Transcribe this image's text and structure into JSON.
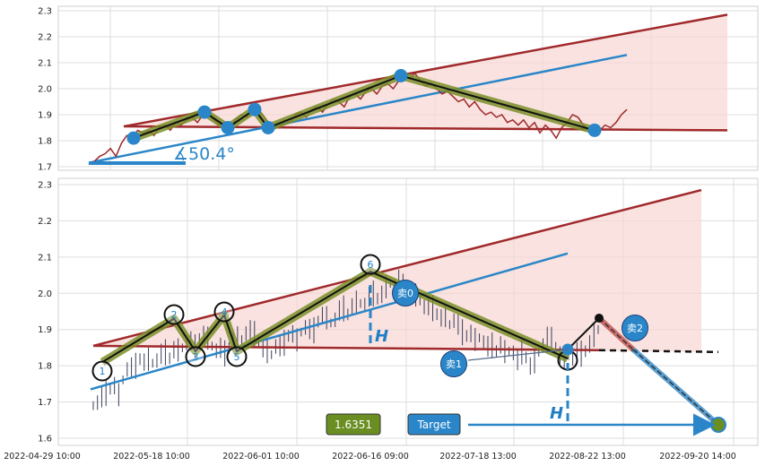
{
  "chart_data": [
    {
      "type": "line",
      "title": "",
      "ylim": [
        1.7,
        2.3
      ],
      "yticks": [
        "1.7",
        "1.8",
        "1.9",
        "2.0",
        "2.1",
        "2.2",
        "2.3"
      ],
      "grid": true,
      "series": [
        {
          "values": [
            1.71,
            1.72,
            1.74,
            1.75,
            1.77,
            1.74,
            1.79,
            1.82,
            1.81,
            1.84,
            1.83,
            1.84,
            1.82,
            1.85,
            1.86,
            1.84,
            1.87,
            1.86,
            1.88,
            1.89,
            1.87,
            1.9,
            1.91,
            1.88,
            1.86,
            1.87,
            1.85,
            1.88,
            1.9,
            1.89,
            1.91,
            1.92,
            1.9,
            1.87,
            1.86,
            1.85,
            1.88,
            1.87,
            1.9,
            1.91,
            1.89,
            1.92,
            1.93,
            1.91,
            1.94,
            1.96,
            1.95,
            1.93,
            1.97,
            1.98,
            1.96,
            1.99,
            2.0,
            1.98,
            2.01,
            2.02,
            2.0,
            2.03,
            2.05,
            2.04,
            2.06,
            2.03,
            2.01,
            2.02,
            2.0,
            1.98,
            1.99,
            1.97,
            1.95,
            1.96,
            1.93,
            1.95,
            1.92,
            1.9,
            1.91,
            1.89,
            1.9,
            1.87,
            1.88,
            1.86,
            1.88,
            1.85,
            1.87,
            1.83,
            1.86,
            1.84,
            1.81,
            1.85,
            1.87,
            1.9,
            1.89,
            1.86,
            1.84,
            1.85,
            1.84,
            1.86,
            1.85,
            1.87,
            1.9,
            1.92
          ]
        }
      ],
      "wave_points": [
        1.81,
        1.91,
        1.85,
        1.92,
        1.85,
        2.05,
        1.84
      ],
      "annotations": {
        "angle_label": "∡50.4°"
      }
    },
    {
      "type": "line",
      "title": "",
      "ylim": [
        1.6,
        2.3
      ],
      "yticks": [
        "1.6",
        "1.7",
        "1.8",
        "1.9",
        "2.0",
        "2.1",
        "2.2",
        "2.3"
      ],
      "xticks": [
        "2022-04-29 10:00",
        "2022-05-18 10:00",
        "2022-06-01 10:00",
        "2022-06-16 09:00",
        "2022-07-18 13:00",
        "2022-08-22 13:00",
        "2022-09-20 14:00"
      ],
      "grid": true,
      "wave_points": [
        1.81,
        1.93,
        1.84,
        1.94,
        1.84,
        2.06,
        1.82
      ],
      "wave_labels": [
        "1",
        "2",
        "3",
        "4",
        "5",
        "6"
      ],
      "signals": [
        {
          "label": "卖0",
          "value": 2.0
        },
        {
          "label": "卖1",
          "value": 1.8
        },
        {
          "label": "卖2",
          "value": 1.9
        }
      ],
      "annotations": {
        "height_marker": "H",
        "price_label": "1.6351",
        "target_label": "Target",
        "target_value": 1.6351
      }
    }
  ],
  "colors": {
    "price_line": "#9e2a2b",
    "trend_red": "#a0292b",
    "trend_blue": "#2a86c8",
    "wave_fill": "#7b8f2a",
    "marker": "#2a86c8",
    "price_badge": "#6b8e23",
    "target_badge": "#2a86c8",
    "shade": "#f6d6d2"
  }
}
